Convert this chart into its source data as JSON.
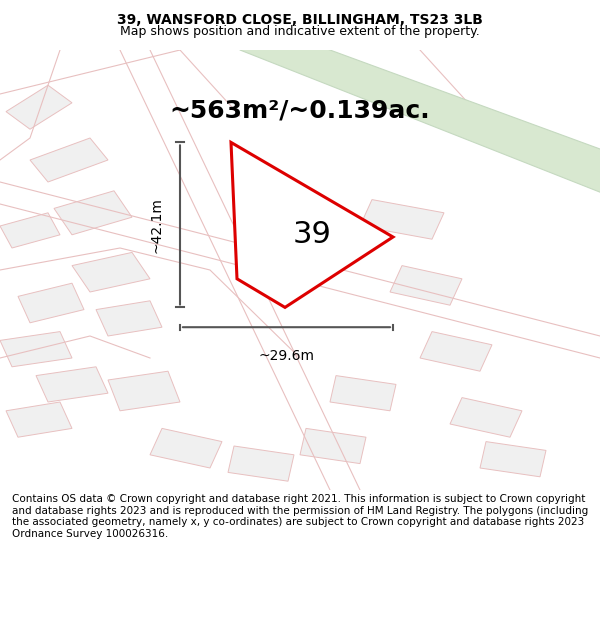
{
  "title_line1": "39, WANSFORD CLOSE, BILLINGHAM, TS23 3LB",
  "title_line2": "Map shows position and indicative extent of the property.",
  "area_text": "~563m²/~0.139ac.",
  "label_number": "39",
  "dim_height": "~42.1m",
  "dim_width": "~29.6m",
  "footer_text": "Contains OS data © Crown copyright and database right 2021. This information is subject to Crown copyright and database rights 2023 and is reproduced with the permission of HM Land Registry. The polygons (including the associated geometry, namely x, y co-ordinates) are subject to Crown copyright and database rights 2023 Ordnance Survey 100026316.",
  "bg_color": "#ffffff",
  "map_bg_color": "#f5f5f5",
  "road_band_color": "#d8e8d0",
  "road_band_edge_color": "#c5d9c0",
  "property_fill": "#ffffff",
  "property_edge_color": "#dd0000",
  "bg_polygon_color": "#f0f0f0",
  "bg_polygon_edge": "#e8c0c0",
  "dim_line_color": "#555555",
  "title_fontsize": 10,
  "subtitle_fontsize": 9,
  "area_fontsize": 18,
  "label_fontsize": 22,
  "dim_fontsize": 10,
  "footer_fontsize": 7.5
}
